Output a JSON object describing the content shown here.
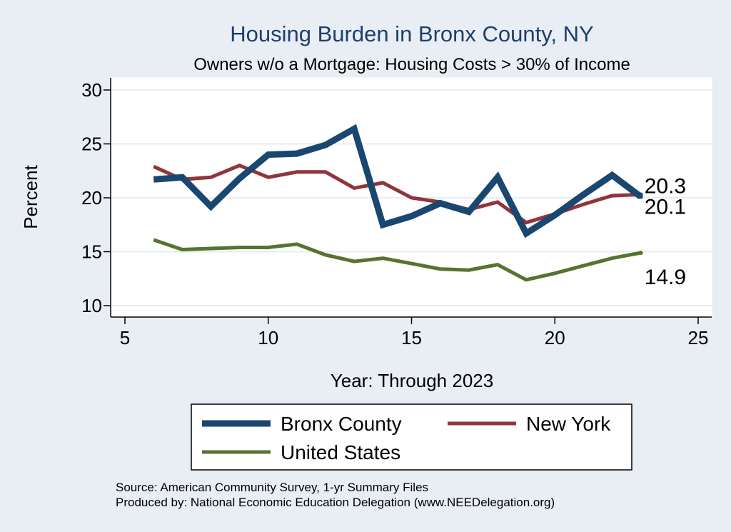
{
  "chart_data": {
    "type": "line",
    "title": "Housing Burden in Bronx County, NY",
    "subtitle": "Owners w/o a Mortgage: Housing Costs > 30% of Income",
    "xlabel": "Year: Through 2023",
    "ylabel": "Percent",
    "xlim": [
      5,
      25
    ],
    "ylim": [
      10,
      30
    ],
    "xticks": [
      5,
      10,
      15,
      20,
      25
    ],
    "yticks": [
      10,
      15,
      20,
      25,
      30
    ],
    "grid": true,
    "legend_position": "bottom",
    "series": [
      {
        "name": "Bronx County",
        "color": "#1a476f",
        "x": [
          6,
          7,
          8,
          9,
          10,
          11,
          12,
          13,
          14,
          15,
          16,
          17,
          18,
          19,
          20,
          21,
          22,
          23
        ],
        "values": [
          21.7,
          21.9,
          19.2,
          21.8,
          24.0,
          24.1,
          24.9,
          26.4,
          17.5,
          18.3,
          19.5,
          18.7,
          21.9,
          16.7,
          18.4,
          20.3,
          22.1,
          20.1
        ],
        "end_label": "20.1"
      },
      {
        "name": "New York",
        "color": "#90353b",
        "x": [
          6,
          7,
          8,
          9,
          10,
          11,
          12,
          13,
          14,
          15,
          16,
          17,
          18,
          19,
          20,
          21,
          22,
          23
        ],
        "values": [
          22.9,
          21.7,
          21.9,
          23.0,
          21.9,
          22.4,
          22.4,
          20.9,
          21.4,
          20.0,
          19.6,
          18.9,
          19.6,
          17.7,
          18.5,
          19.4,
          20.2,
          20.3
        ],
        "end_label": "20.3"
      },
      {
        "name": "United States",
        "color": "#55752f",
        "x": [
          6,
          7,
          8,
          9,
          10,
          11,
          12,
          13,
          14,
          15,
          16,
          17,
          18,
          19,
          20,
          21,
          22,
          23
        ],
        "values": [
          16.1,
          15.2,
          15.3,
          15.4,
          15.4,
          15.7,
          14.7,
          14.1,
          14.4,
          13.9,
          13.4,
          13.3,
          13.8,
          12.4,
          13.0,
          13.7,
          14.4,
          14.9
        ],
        "end_label": "14.9"
      }
    ],
    "notes": [
      "Source: American Community Survey, 1-yr Summary Files",
      "Produced by: National Economic Education Delegation (www.NEEDelegation.org)"
    ]
  }
}
